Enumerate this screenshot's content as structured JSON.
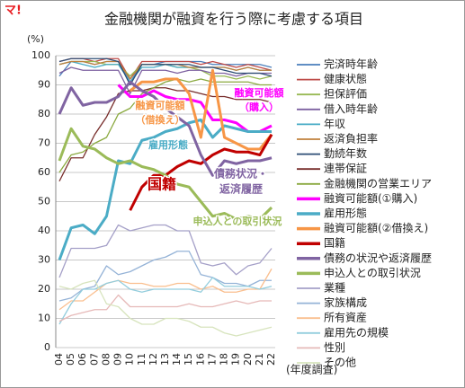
{
  "chart_data": {
    "type": "line",
    "logo": "マ!",
    "title": "金融機関が融資を行う際に考慮する項目",
    "y_unit": "(%)",
    "x_unit": "(年度調査)",
    "categories": [
      "04",
      "05",
      "06",
      "07",
      "08",
      "09",
      "10",
      "11",
      "12",
      "13",
      "14",
      "15",
      "16",
      "17",
      "18",
      "19",
      "20",
      "21",
      "22"
    ],
    "ylim": [
      0,
      100
    ],
    "yticks": [
      0,
      10,
      20,
      30,
      40,
      50,
      60,
      70,
      80,
      90,
      100
    ],
    "grid": true,
    "series": [
      {
        "name": "完済時年齢",
        "color": "#4a7ebb",
        "width": 1.3,
        "values": [
          93,
          98,
          98,
          97,
          98,
          98,
          91,
          97,
          97,
          98,
          98,
          98,
          98,
          97,
          97,
          97,
          97,
          97,
          96
        ]
      },
      {
        "name": "健康状態",
        "color": "#be4b48",
        "width": 1.3,
        "values": [
          98,
          99,
          99,
          98,
          99,
          99,
          92,
          98,
          98,
          98,
          98,
          98,
          97,
          98,
          97,
          96,
          97,
          96,
          95
        ]
      },
      {
        "name": "担保評価",
        "color": "#98b954",
        "width": 1.3,
        "values": [
          97,
          98,
          98,
          98,
          97,
          97,
          93,
          97,
          97,
          97,
          96,
          96,
          95,
          93,
          93,
          92,
          93,
          92,
          93
        ]
      },
      {
        "name": "借入時年齢",
        "color": "#7d60a0",
        "width": 1.3,
        "values": [
          94,
          96,
          95,
          95,
          95,
          95,
          87,
          95,
          95,
          95,
          94,
          95,
          95,
          94,
          94,
          93,
          94,
          94,
          94
        ]
      },
      {
        "name": "年収",
        "color": "#46aac5",
        "width": 1.3,
        "values": [
          97,
          98,
          97,
          96,
          97,
          97,
          91,
          96,
          96,
          97,
          96,
          96,
          96,
          96,
          96,
          95,
          96,
          95,
          95
        ]
      },
      {
        "name": "返済負担率",
        "color": "#c0803c",
        "width": 1.3,
        "values": [
          97,
          98,
          98,
          97,
          98,
          98,
          92,
          97,
          97,
          97,
          97,
          96,
          96,
          96,
          96,
          95,
          96,
          95,
          95
        ]
      },
      {
        "name": "勤続年数",
        "color": "#2c4d75",
        "width": 1.3,
        "values": [
          98,
          99,
          99,
          99,
          99,
          98,
          90,
          97,
          97,
          97,
          97,
          97,
          96,
          96,
          95,
          94,
          94,
          94,
          93
        ]
      },
      {
        "name": "連帯保証",
        "color": "#772c2a",
        "width": 1.3,
        "values": [
          57,
          65,
          65,
          73,
          79,
          87,
          88,
          88,
          89,
          89,
          88,
          88,
          87,
          86,
          86,
          85,
          85,
          85,
          84
        ]
      },
      {
        "name": "金融機関の営業エリア",
        "color": "#8aa93f",
        "width": 1.3,
        "values": [
          60,
          66,
          67,
          70,
          72,
          80,
          82,
          87,
          89,
          91,
          92,
          91,
          92,
          91,
          91,
          91,
          91,
          90,
          90
        ]
      },
      {
        "name": "融資可能額(①購入)",
        "color": "#ff00ff",
        "width": 3,
        "values": [
          null,
          null,
          null,
          null,
          null,
          90,
          86,
          86,
          88,
          86,
          85,
          85,
          84,
          78,
          78,
          77,
          74,
          74,
          76
        ]
      },
      {
        "name": "雇用形態",
        "color": "#4bacc6",
        "width": 3,
        "values": [
          30,
          41,
          42,
          39,
          45,
          64,
          63,
          71,
          72,
          74,
          75,
          77,
          78,
          72,
          76,
          75,
          74,
          74,
          74
        ]
      },
      {
        "name": "融資可能額(②借換え)",
        "color": "#f79646",
        "width": 3,
        "values": [
          null,
          null,
          null,
          null,
          null,
          null,
          88,
          91,
          91,
          92,
          92,
          87,
          72,
          95,
          72,
          70,
          68,
          68,
          73
        ]
      },
      {
        "name": "国籍",
        "color": "#c00000",
        "width": 3,
        "values": [
          null,
          null,
          null,
          null,
          null,
          null,
          47,
          55,
          59,
          59,
          62,
          64,
          63,
          66,
          68,
          67,
          67,
          66,
          73
        ]
      },
      {
        "name": "債務の状況や返済履歴",
        "color": "#8064a2",
        "width": 3,
        "values": [
          80,
          89,
          83,
          84,
          84,
          86,
          91,
          88,
          86,
          82,
          79,
          76,
          66,
          59,
          64,
          63,
          64,
          64,
          65
        ]
      },
      {
        "name": "申込人との取引状況",
        "color": "#9bbb59",
        "width": 3,
        "values": [
          64,
          75,
          69,
          68,
          65,
          63,
          64,
          62,
          61,
          59,
          56,
          55,
          50,
          45,
          46,
          44,
          45,
          44,
          48
        ]
      },
      {
        "name": "業種",
        "color": "#a5a0c8",
        "width": 1.3,
        "values": [
          24,
          34,
          34,
          34,
          35,
          42,
          40,
          41,
          42,
          42,
          40,
          40,
          29,
          28,
          29,
          25,
          28,
          29,
          34
        ]
      },
      {
        "name": "家族構成",
        "color": "#95b3d7",
        "width": 1.3,
        "values": [
          16,
          17,
          20,
          21,
          28,
          25,
          26,
          28,
          30,
          31,
          33,
          33,
          25,
          24,
          22,
          22,
          21,
          23,
          23
        ]
      },
      {
        "name": "所有資産",
        "color": "#fabf8f",
        "width": 1.3,
        "values": [
          13,
          16,
          16,
          19,
          22,
          23,
          22,
          22,
          21,
          21,
          22,
          22,
          20,
          21,
          19,
          19,
          20,
          20,
          27
        ]
      },
      {
        "name": "雇用先の規模",
        "color": "#93cddd",
        "width": 1.3,
        "values": [
          8,
          15,
          20,
          20,
          22,
          23,
          20,
          19,
          20,
          20,
          20,
          20,
          19,
          24,
          21,
          21,
          21,
          20,
          21
        ]
      },
      {
        "name": "性別",
        "color": "#e6b9b8",
        "width": 1.3,
        "values": [
          9,
          11,
          12,
          13,
          13,
          18,
          14,
          14,
          14,
          14,
          14,
          15,
          14,
          14,
          15,
          16,
          15,
          16,
          16
        ]
      },
      {
        "name": "その他",
        "color": "#d7e4bd",
        "width": 1.3,
        "values": [
          21,
          20,
          22,
          23,
          15,
          14,
          10,
          8,
          8,
          10,
          10,
          9,
          7,
          7,
          5,
          4,
          5,
          6,
          7
        ]
      }
    ],
    "annotations": [
      {
        "lines": [
          "融資可能額",
          "（購入）"
        ],
        "color": "#ff00ff"
      },
      {
        "lines": [
          "融資可能額",
          "（借換え）"
        ],
        "color": "#f79646"
      },
      {
        "lines": [
          "雇用形態"
        ],
        "color": "#4bacc6"
      },
      {
        "lines": [
          "国籍"
        ],
        "color": "#c00000"
      },
      {
        "lines": [
          "債務状況・",
          "返済履歴"
        ],
        "color": "#8064a2"
      },
      {
        "lines": [
          "申込人との取引状況"
        ],
        "color": "#9bbb59"
      }
    ]
  }
}
